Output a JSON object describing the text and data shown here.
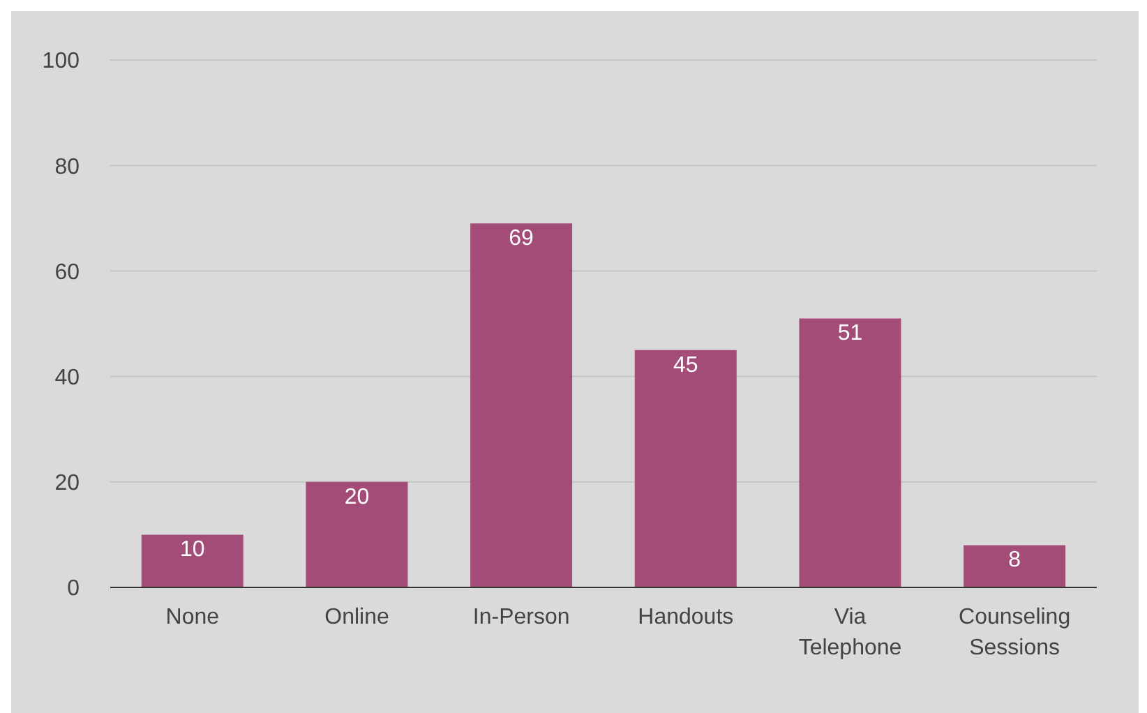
{
  "chart_data": {
    "type": "bar",
    "categories": [
      "None",
      "Online",
      "In-Person",
      "Handouts",
      "Via Telephone",
      "Counseling Sessions"
    ],
    "values": [
      10,
      20,
      69,
      45,
      51,
      8
    ],
    "color": "#a34c78",
    "ylim": [
      0,
      100
    ],
    "yticks": [
      0,
      20,
      40,
      60,
      80,
      100
    ],
    "grid": "y",
    "data_labels": true
  }
}
